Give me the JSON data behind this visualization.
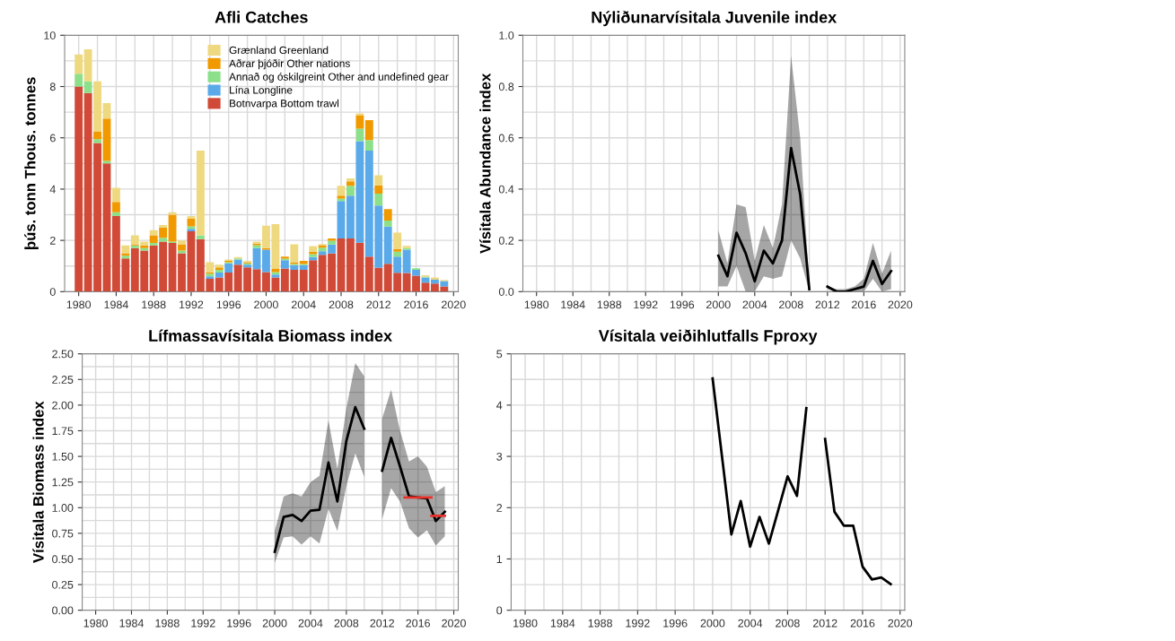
{
  "chart_data": [
    {
      "type": "bar",
      "title": "Afli Catches",
      "ylabel": "þús. tonn Thous. tonnes",
      "stacked": true,
      "grid": true,
      "legend": "top right",
      "x": [
        1980,
        1981,
        1982,
        1983,
        1984,
        1985,
        1986,
        1987,
        1988,
        1989,
        1990,
        1991,
        1992,
        1993,
        1994,
        1995,
        1996,
        1997,
        1998,
        1999,
        2000,
        2001,
        2002,
        2003,
        2004,
        2005,
        2006,
        2007,
        2008,
        2009,
        2010,
        2011,
        2012,
        2013,
        2014,
        2015,
        2016,
        2017,
        2018,
        2019
      ],
      "xlim": [
        1978.5,
        2020.5
      ],
      "xticks": [
        1980,
        1984,
        1988,
        1992,
        1996,
        2000,
        2004,
        2008,
        2012,
        2016,
        2020
      ],
      "ylim": [
        0,
        10
      ],
      "yticks": [
        0,
        2,
        4,
        6,
        8,
        10
      ],
      "series": [
        {
          "name": "Botnvarpa Bottom trawl",
          "color": "#d04a37",
          "values": [
            8.0,
            7.75,
            5.8,
            5.0,
            2.95,
            1.3,
            1.7,
            1.6,
            1.8,
            1.95,
            1.9,
            1.5,
            2.35,
            2.05,
            0.5,
            0.55,
            0.75,
            1.05,
            0.95,
            0.88,
            0.76,
            0.55,
            0.9,
            0.85,
            0.85,
            1.23,
            1.44,
            1.49,
            2.07,
            2.07,
            1.91,
            1.37,
            0.94,
            1.09,
            0.74,
            0.73,
            0.62,
            0.35,
            0.32,
            0.2
          ]
        },
        {
          "name": "Lína Longline",
          "color": "#5aaaea",
          "values": [
            0,
            0,
            0,
            0,
            0,
            0,
            0,
            0,
            0,
            0,
            0,
            0,
            0.1,
            0,
            0.1,
            0.2,
            0.35,
            0.2,
            0.1,
            0.82,
            0.88,
            0.12,
            0.33,
            0.18,
            0.18,
            0.12,
            0.14,
            0.35,
            1.46,
            1.67,
            3.96,
            4.13,
            2.42,
            1.45,
            0.63,
            0.91,
            0.23,
            0.2,
            0.15,
            0.21
          ]
        },
        {
          "name": "Annað og óskilgreint Other and undefined gear",
          "color": "#8de08a",
          "values": [
            0.5,
            0.45,
            0.15,
            0.1,
            0.15,
            0.1,
            0.1,
            0.1,
            0.1,
            0.15,
            0.05,
            0.1,
            0.1,
            0.15,
            0.1,
            0.1,
            0.05,
            0.05,
            0.05,
            0.11,
            0,
            0.09,
            0.06,
            0.05,
            0.05,
            0.11,
            0.14,
            0.15,
            0.1,
            0.39,
            0.49,
            0.41,
            0.46,
            0.23,
            0.19,
            0.06,
            0.06,
            0.04,
            0,
            0
          ]
        },
        {
          "name": "Aðrar þjóðir Other nations",
          "color": "#f09a00",
          "values": [
            0,
            0,
            0.3,
            1.65,
            0.4,
            0.1,
            0.05,
            0.1,
            0.3,
            0.4,
            1.05,
            0.25,
            0.3,
            0,
            0.05,
            0.1,
            0.05,
            0,
            0.05,
            0.06,
            0.06,
            0.14,
            0.08,
            0.07,
            0.12,
            0.1,
            0.09,
            0.08,
            0.11,
            0.17,
            0.52,
            0.78,
            0.33,
            0.45,
            0.1,
            0,
            0,
            0,
            0,
            0
          ]
        },
        {
          "name": "Grænland Greenland",
          "color": "#eed980",
          "values": [
            0.75,
            1.25,
            1.95,
            0.6,
            0.55,
            0.3,
            0.35,
            0.15,
            0.2,
            0.1,
            0.1,
            0.15,
            0.1,
            3.3,
            0.4,
            0.1,
            0.05,
            0.05,
            0.05,
            0.08,
            0.87,
            1.73,
            0,
            0.7,
            0,
            0.22,
            0.05,
            0,
            0.39,
            0.12,
            0.07,
            0,
            0.39,
            0,
            0.64,
            0.09,
            0,
            0.05,
            0.08,
            0.05
          ]
        }
      ]
    },
    {
      "type": "line",
      "title": "Nýliðunarvísitala Juvenile index",
      "ylabel": "Vísitala Abundance index",
      "grid": true,
      "x": [
        2000,
        2001,
        2002,
        2003,
        2004,
        2005,
        2006,
        2007,
        2008,
        2009,
        2010,
        2011,
        2012,
        2013,
        2014,
        2015,
        2016,
        2017,
        2018,
        2019
      ],
      "xlim": [
        1978.5,
        2020.5
      ],
      "xticks": [
        1980,
        1984,
        1988,
        1992,
        1996,
        2000,
        2004,
        2008,
        2012,
        2016,
        2020
      ],
      "ylim": [
        0,
        1
      ],
      "yticks": [
        {
          "value": 0,
          "label": "0.0"
        },
        0.2,
        0.4,
        0.6,
        0.8,
        {
          "value": 1,
          "label": "1.0"
        }
      ],
      "series": [
        {
          "color": "#000000",
          "values": [
            0.14,
            0.06,
            0.23,
            0.15,
            0.04,
            0.16,
            0.11,
            0.2,
            0.56,
            0.38,
            0.01,
            null,
            0.02,
            0,
            0,
            0.01,
            0.02,
            0.12,
            0.03,
            0.08
          ],
          "upper": [
            0.24,
            0.11,
            0.34,
            0.33,
            0.12,
            0.26,
            0.17,
            0.34,
            0.92,
            0.6,
            0.03,
            null,
            0.02,
            0.01,
            0.01,
            0.02,
            0.05,
            0.19,
            0.07,
            0.16
          ],
          "lower": [
            0.02,
            0.02,
            0.1,
            0,
            0,
            0.06,
            0.05,
            0.06,
            0.2,
            0.13,
            0,
            null,
            0.01,
            0,
            0,
            0,
            0,
            0.05,
            0,
            0.01
          ]
        }
      ]
    },
    {
      "type": "line",
      "title": "Lífmassavísitala Biomass index",
      "ylabel": "Vísitala Biomass index",
      "grid": true,
      "x": [
        2000,
        2001,
        2002,
        2003,
        2004,
        2005,
        2006,
        2007,
        2008,
        2009,
        2010,
        2011,
        2012,
        2013,
        2014,
        2015,
        2016,
        2017,
        2018,
        2019
      ],
      "xlim": [
        1978.5,
        2020.5
      ],
      "xticks": [
        1980,
        1984,
        1988,
        1992,
        1996,
        2000,
        2004,
        2008,
        2012,
        2016,
        2020
      ],
      "ylim": [
        0,
        2.5
      ],
      "yticks": [
        {
          "value": 0,
          "label": "0.00"
        },
        {
          "value": 0.25,
          "label": "0.25"
        },
        {
          "value": 0.5,
          "label": "0.50"
        },
        {
          "value": 0.75,
          "label": "0.75"
        },
        {
          "value": 1,
          "label": "1.00"
        },
        {
          "value": 1.25,
          "label": "1.25"
        },
        {
          "value": 1.5,
          "label": "1.50"
        },
        {
          "value": 1.75,
          "label": "1.75"
        },
        {
          "value": 2,
          "label": "2.00"
        },
        {
          "value": 2.25,
          "label": "2.25"
        },
        {
          "value": 2.5,
          "label": "2.50"
        }
      ],
      "series": [
        {
          "color": "#000000",
          "values": [
            0.57,
            0.91,
            0.93,
            0.87,
            0.97,
            0.98,
            1.44,
            1.06,
            1.65,
            1.98,
            1.77,
            null,
            1.36,
            1.68,
            1.4,
            1.11,
            1.1,
            1.09,
            0.87,
            0.96
          ],
          "upper": [
            0.77,
            1.11,
            1.14,
            1.11,
            1.25,
            1.31,
            1.85,
            1.38,
            1.97,
            2.41,
            2.28,
            null,
            1.87,
            2.15,
            1.75,
            1.45,
            1.5,
            1.4,
            1.15,
            1.21
          ],
          "lower": [
            0.46,
            0.71,
            0.72,
            0.64,
            0.72,
            0.65,
            0.99,
            0.77,
            1.21,
            1.53,
            1.3,
            null,
            0.89,
            1.19,
            1.06,
            0.8,
            0.71,
            0.78,
            0.63,
            0.72
          ]
        },
        {
          "type": "line",
          "color": "#e8322a",
          "x": [
            2014.5,
            2017.5
          ],
          "values": [
            1.1,
            1.1
          ]
        },
        {
          "type": "line",
          "color": "#e8322a",
          "x": [
            2017.5,
            2019
          ],
          "values": [
            0.92,
            0.92
          ]
        }
      ]
    },
    {
      "type": "line",
      "title": "Vísitala veiðihlutfalls Fproxy",
      "grid": true,
      "x": [
        2000,
        2001,
        2002,
        2003,
        2004,
        2005,
        2006,
        2007,
        2008,
        2009,
        2010,
        2011,
        2012,
        2013,
        2014,
        2015,
        2016,
        2017,
        2018,
        2019
      ],
      "xlim": [
        1978.5,
        2020.5
      ],
      "xticks": [
        1980,
        1984,
        1988,
        1992,
        1996,
        2000,
        2004,
        2008,
        2012,
        2016,
        2020
      ],
      "ylim": [
        0,
        5
      ],
      "yticks": [
        0,
        1,
        2,
        3,
        4,
        5
      ],
      "series": [
        {
          "color": "#000000",
          "values": [
            4.52,
            3.0,
            1.48,
            2.13,
            1.24,
            1.82,
            1.3,
            1.95,
            2.61,
            2.23,
            3.94,
            null,
            3.34,
            1.92,
            1.65,
            1.65,
            0.85,
            0.6,
            0.64,
            0.51
          ]
        }
      ]
    }
  ]
}
